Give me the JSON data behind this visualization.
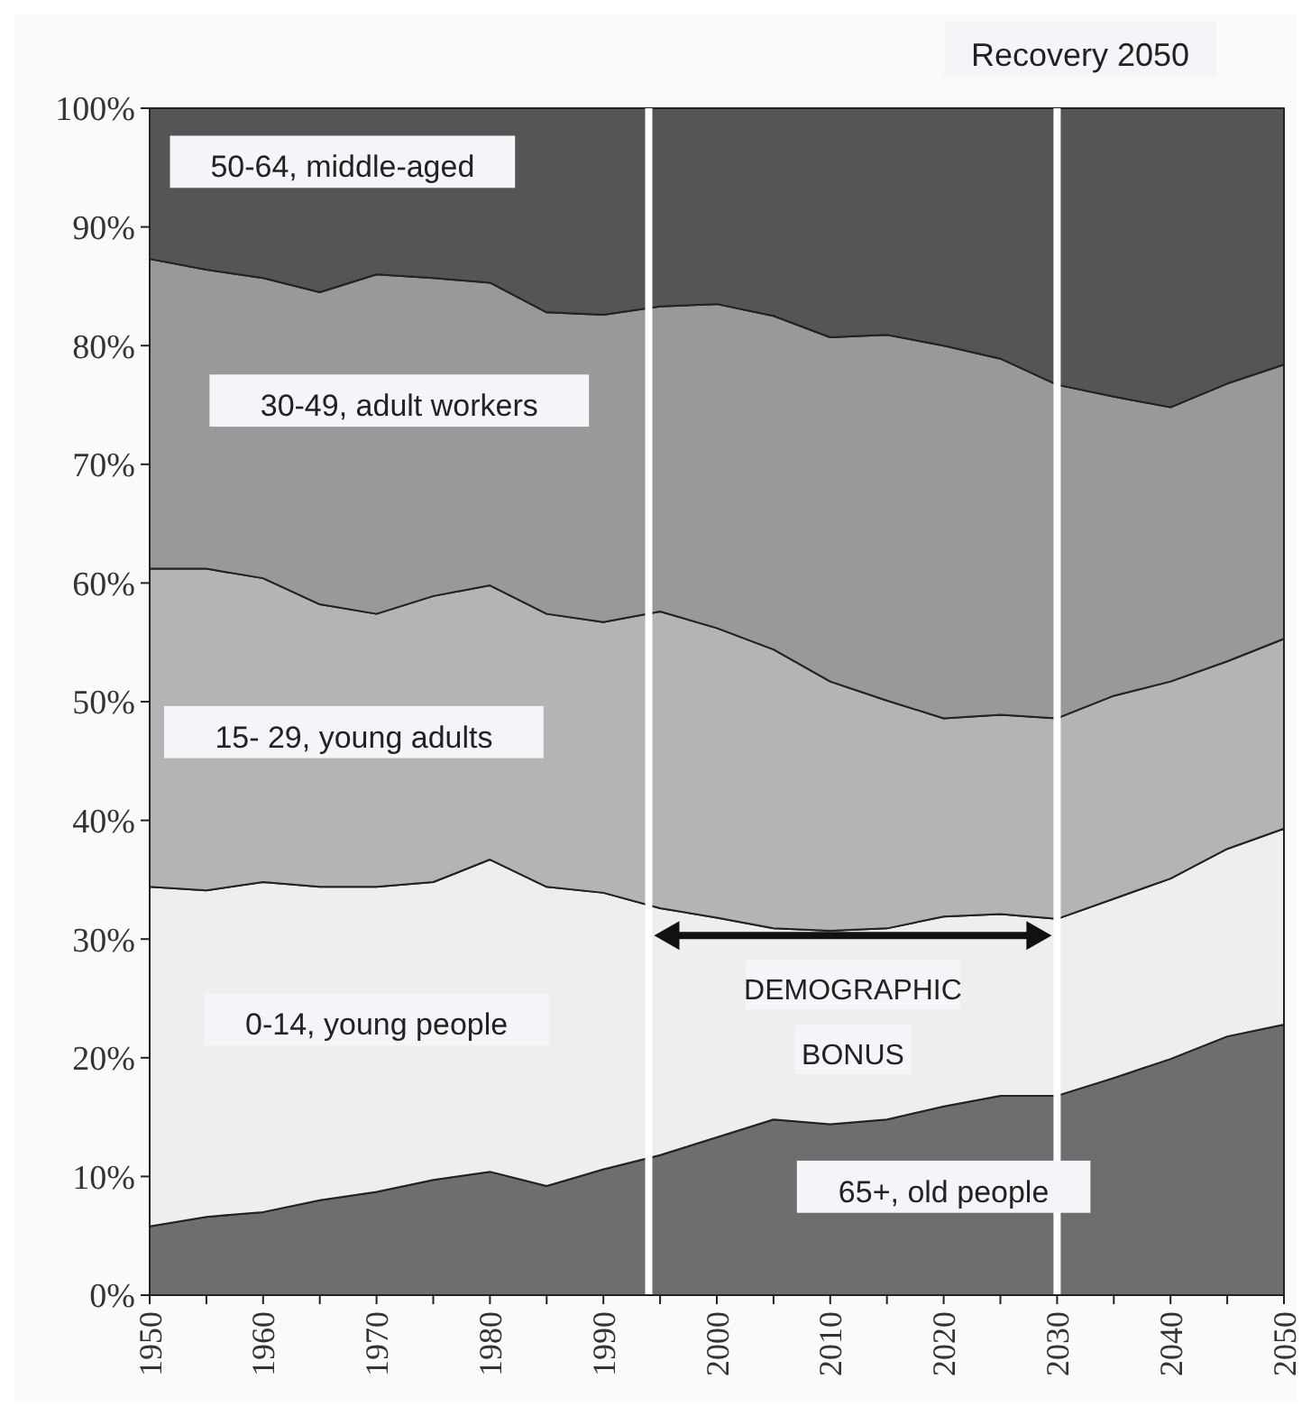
{
  "chart_data": {
    "type": "area",
    "stacked": true,
    "title": "Recovery 2050",
    "x": [
      1950,
      1955,
      1960,
      1965,
      1970,
      1975,
      1980,
      1985,
      1990,
      1995,
      2000,
      2005,
      2010,
      2015,
      2020,
      2025,
      2030,
      2035,
      2040,
      2045,
      2050
    ],
    "series": [
      {
        "name": "65+, old people",
        "color": "#6e6e6e",
        "values": [
          5.8,
          6.6,
          7.0,
          8.0,
          8.7,
          9.7,
          10.4,
          9.2,
          10.6,
          11.8,
          13.3,
          14.8,
          14.4,
          14.8,
          15.9,
          16.8,
          16.8,
          18.3,
          19.9,
          21.8,
          22.8
        ]
      },
      {
        "name": "0-14, young people",
        "color": "#eeeeee",
        "values": [
          28.6,
          27.5,
          27.8,
          26.4,
          25.7,
          25.1,
          26.3,
          25.2,
          23.3,
          20.8,
          18.5,
          16.1,
          16.3,
          16.1,
          16.0,
          15.3,
          14.9,
          15.1,
          15.2,
          15.8,
          16.5
        ]
      },
      {
        "name": "15- 29, young adults",
        "color": "#b4b4b4",
        "values": [
          26.8,
          27.1,
          25.6,
          23.8,
          23.0,
          24.1,
          23.1,
          23.0,
          22.8,
          25.0,
          24.4,
          23.5,
          21.0,
          19.2,
          16.7,
          16.8,
          16.9,
          17.1,
          16.6,
          15.8,
          16.0
        ]
      },
      {
        "name": "30-49, adult workers",
        "color": "#999999",
        "values": [
          26.1,
          25.2,
          25.3,
          26.3,
          28.6,
          26.8,
          25.5,
          25.4,
          25.9,
          25.7,
          27.3,
          28.1,
          29.0,
          30.8,
          31.4,
          30.0,
          28.1,
          25.2,
          23.1,
          23.4,
          23.1
        ]
      },
      {
        "name": "50-64, middle-aged",
        "color": "#555555",
        "values": [
          12.7,
          13.6,
          14.3,
          15.5,
          14.0,
          14.3,
          14.7,
          17.2,
          17.4,
          16.7,
          16.5,
          17.5,
          19.3,
          19.1,
          20.0,
          21.1,
          23.3,
          24.3,
          25.2,
          23.2,
          21.6
        ]
      }
    ],
    "xlim": [
      1950,
      2050
    ],
    "xticks": [
      1950,
      {
        "value": 1955,
        "label": null
      },
      1960,
      {
        "value": 1965,
        "label": null
      },
      1970,
      {
        "value": 1975,
        "label": null
      },
      1980,
      {
        "value": 1985,
        "label": null
      },
      1990,
      {
        "value": 1995,
        "label": null
      },
      2000,
      {
        "value": 2005,
        "label": null
      },
      2010,
      {
        "value": 2015,
        "label": null
      },
      2020,
      {
        "value": 2025,
        "label": null
      },
      2030,
      {
        "value": 2035,
        "label": null
      },
      2040,
      {
        "value": 2045,
        "label": null
      },
      2050
    ],
    "ylim": [
      0,
      100
    ],
    "yticks": [
      {
        "value": 0,
        "label": "0%"
      },
      {
        "value": 10,
        "label": "10%"
      },
      {
        "value": 20,
        "label": "20%"
      },
      {
        "value": 30,
        "label": "30%"
      },
      {
        "value": 40,
        "label": "40%"
      },
      {
        "value": 50,
        "label": "50%"
      },
      {
        "value": 60,
        "label": "60%"
      },
      {
        "value": 70,
        "label": "70%"
      },
      {
        "value": 80,
        "label": "80%"
      },
      {
        "value": 90,
        "label": "90%"
      },
      {
        "value": 100,
        "label": "100%"
      }
    ],
    "ref_lines": [
      {
        "axis": "x",
        "value": 1994,
        "color": "#ffffff"
      },
      {
        "axis": "x",
        "value": 2030,
        "color": "#ffffff"
      }
    ],
    "annotations": [
      "DEMOGRAPHIC BONUS"
    ],
    "grid": false
  }
}
